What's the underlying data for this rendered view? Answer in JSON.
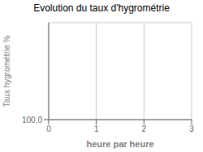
{
  "chart_data": {
    "type": "line",
    "title": "Evolution du taux d'hygrométrie",
    "xlabel": "heure par heure",
    "ylabel": "Taux hygrométrie %",
    "xlim": [
      0,
      3
    ],
    "xticks": [
      0,
      1,
      2,
      3
    ],
    "ylim": [
      100,
      500
    ],
    "yticks": [
      {
        "value": 100,
        "label": "100.0"
      }
    ],
    "grid": true
  }
}
